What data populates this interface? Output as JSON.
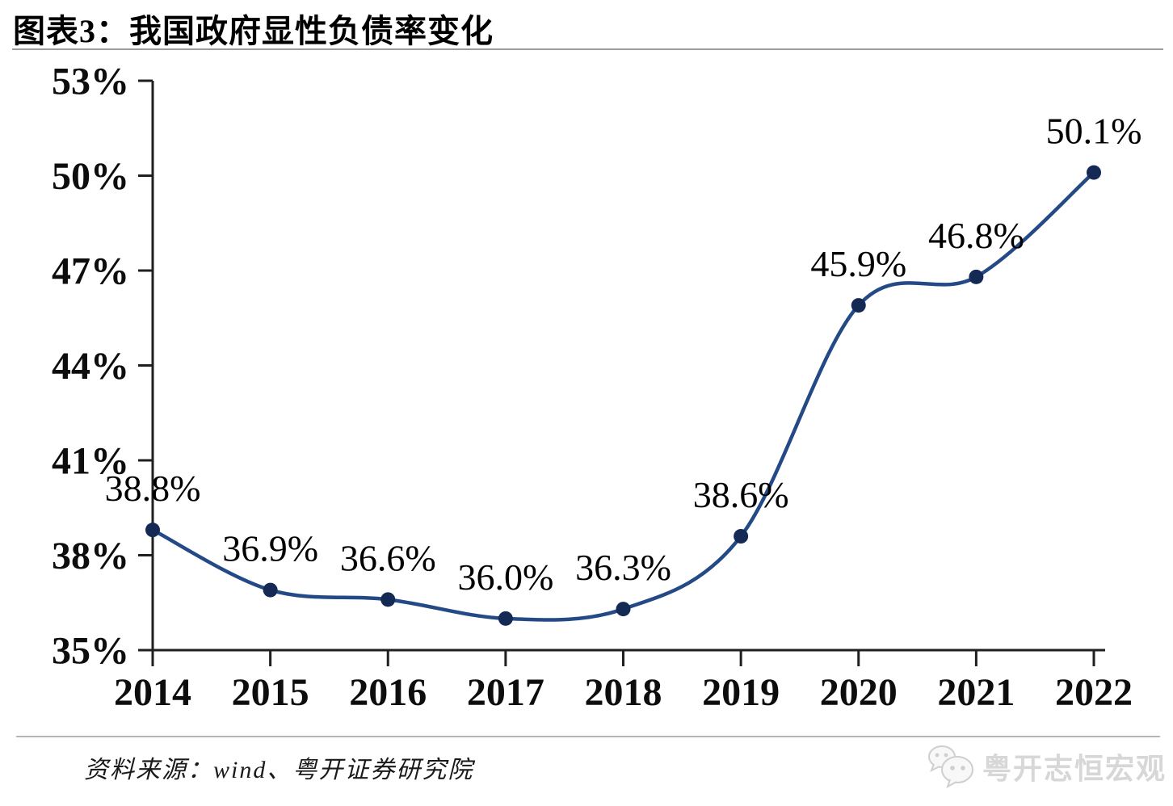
{
  "figure": {
    "title": "图表3：我国政府显性负债率变化",
    "source": "资料来源：wind、粤开证券研究院",
    "watermark": "粤开志恒宏观"
  },
  "chart_data": {
    "type": "line",
    "title": "我国政府显性负债率变化",
    "categories": [
      "2014",
      "2015",
      "2016",
      "2017",
      "2018",
      "2019",
      "2020",
      "2021",
      "2022"
    ],
    "values": [
      38.8,
      36.9,
      36.6,
      36.0,
      36.3,
      38.6,
      45.9,
      46.8,
      50.1
    ],
    "point_labels": [
      "38.8%",
      "36.9%",
      "36.6%",
      "36.0%",
      "36.3%",
      "38.6%",
      "45.9%",
      "46.8%",
      "50.1%"
    ],
    "xlabel": "",
    "ylabel": "",
    "ylim": [
      35,
      53
    ],
    "yticks": {
      "values": [
        35,
        38,
        41,
        44,
        47,
        50,
        53
      ],
      "labels": [
        "35%",
        "38%",
        "41%",
        "44%",
        "47%",
        "50%",
        "53%"
      ]
    },
    "grid": false,
    "legend": "none",
    "smooth": true,
    "colors": {
      "line": "#234a86",
      "marker": "#142a55",
      "axis": "#1f1f1f"
    }
  }
}
